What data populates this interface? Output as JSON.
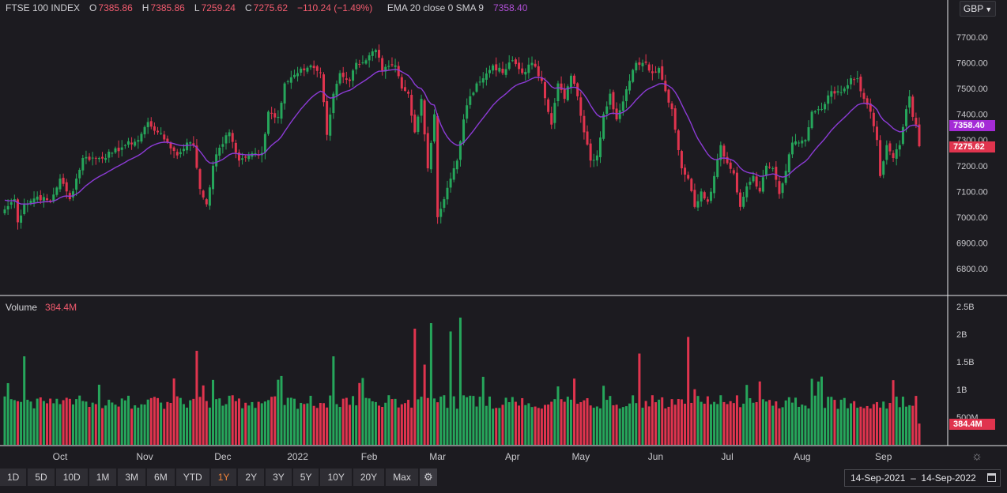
{
  "header": {
    "symbol": "FTSE 100 INDEX",
    "open_label": "O",
    "open": "7385.86",
    "high_label": "H",
    "high": "7385.86",
    "low_label": "L",
    "low": "7259.24",
    "close_label": "C",
    "close": "7275.62",
    "change": "−110.24 (−1.49%)",
    "indicator_label": "EMA 20 close 0 SMA 9",
    "indicator_value": "7358.40"
  },
  "currency": "GBP",
  "volume_label": "Volume",
  "volume_value": "384.4M",
  "price_tags": {
    "ema": "7358.40",
    "last": "7275.62",
    "volume": "384.4M"
  },
  "toolbar": {
    "ranges": [
      "1D",
      "5D",
      "10D",
      "1M",
      "3M",
      "6M",
      "YTD",
      "1Y",
      "2Y",
      "3Y",
      "5Y",
      "10Y",
      "20Y",
      "Max"
    ],
    "active_range": "1Y"
  },
  "date_range": {
    "from": "14-Sep-2021",
    "sep": "–",
    "to": "14-Sep-2022"
  },
  "colors": {
    "up": "#26a65b",
    "down": "#e0344e",
    "ema": "#8c3bd6",
    "background": "#1c1b20",
    "grid": "#2a2a30"
  },
  "icons": [
    "chevron-down-icon",
    "gear-icon",
    "calendar-icon",
    "settings-sun-icon"
  ],
  "chart_data": {
    "type": "candlestick",
    "title": "FTSE 100 INDEX",
    "price_axis": {
      "ticks": [
        "7700.00",
        "7600.00",
        "7500.00",
        "7400.00",
        "7300.00",
        "7200.00",
        "7100.00",
        "7000.00",
        "6900.00",
        "6800.00"
      ],
      "ylim": [
        6760,
        7760
      ]
    },
    "volume_axis": {
      "ticks": [
        "2.5B",
        "2B",
        "1.5B",
        "1B",
        "500M"
      ],
      "ylim": [
        0,
        2.55
      ]
    },
    "x_ticks": [
      "Oct",
      "Nov",
      "Dec",
      "2022",
      "Feb",
      "Mar",
      "Apr",
      "May",
      "Jun",
      "Jul",
      "Aug",
      "Sep"
    ],
    "x_tick_days": [
      17,
      43,
      67,
      90,
      112,
      133,
      156,
      177,
      200,
      222,
      245,
      270
    ],
    "anchors": [
      [
        0,
        7030
      ],
      [
        3,
        7070
      ],
      [
        4,
        6980
      ],
      [
        6,
        7050
      ],
      [
        10,
        7080
      ],
      [
        14,
        7060
      ],
      [
        17,
        7150
      ],
      [
        20,
        7070
      ],
      [
        24,
        7230
      ],
      [
        29,
        7230
      ],
      [
        33,
        7250
      ],
      [
        37,
        7280
      ],
      [
        41,
        7300
      ],
      [
        44,
        7370
      ],
      [
        47,
        7330
      ],
      [
        50,
        7290
      ],
      [
        53,
        7240
      ],
      [
        56,
        7290
      ],
      [
        58,
        7280
      ],
      [
        60,
        7110
      ],
      [
        62,
        7050
      ],
      [
        64,
        7200
      ],
      [
        66,
        7270
      ],
      [
        69,
        7330
      ],
      [
        72,
        7220
      ],
      [
        75,
        7240
      ],
      [
        79,
        7250
      ],
      [
        81,
        7410
      ],
      [
        84,
        7390
      ],
      [
        86,
        7520
      ],
      [
        90,
        7560
      ],
      [
        94,
        7590
      ],
      [
        97,
        7560
      ],
      [
        99,
        7320
      ],
      [
        101,
        7480
      ],
      [
        103,
        7560
      ],
      [
        106,
        7530
      ],
      [
        108,
        7600
      ],
      [
        111,
        7610
      ],
      [
        114,
        7650
      ],
      [
        116,
        7570
      ],
      [
        120,
        7590
      ],
      [
        122,
        7500
      ],
      [
        124,
        7480
      ],
      [
        126,
        7330
      ],
      [
        128,
        7460
      ],
      [
        130,
        7190
      ],
      [
        132,
        7400
      ],
      [
        133,
        7000
      ],
      [
        135,
        7070
      ],
      [
        137,
        7150
      ],
      [
        139,
        7220
      ],
      [
        141,
        7380
      ],
      [
        143,
        7470
      ],
      [
        145,
        7520
      ],
      [
        147,
        7540
      ],
      [
        150,
        7590
      ],
      [
        153,
        7560
      ],
      [
        156,
        7610
      ],
      [
        159,
        7560
      ],
      [
        162,
        7600
      ],
      [
        165,
        7530
      ],
      [
        168,
        7360
      ],
      [
        170,
        7520
      ],
      [
        172,
        7460
      ],
      [
        174,
        7550
      ],
      [
        176,
        7470
      ],
      [
        178,
        7330
      ],
      [
        180,
        7220
      ],
      [
        182,
        7240
      ],
      [
        184,
        7400
      ],
      [
        186,
        7480
      ],
      [
        188,
        7380
      ],
      [
        190,
        7450
      ],
      [
        192,
        7530
      ],
      [
        194,
        7600
      ],
      [
        197,
        7600
      ],
      [
        199,
        7560
      ],
      [
        201,
        7580
      ],
      [
        203,
        7490
      ],
      [
        205,
        7420
      ],
      [
        208,
        7190
      ],
      [
        210,
        7150
      ],
      [
        212,
        7040
      ],
      [
        214,
        7100
      ],
      [
        216,
        7060
      ],
      [
        218,
        7160
      ],
      [
        220,
        7280
      ],
      [
        222,
        7210
      ],
      [
        224,
        7170
      ],
      [
        226,
        7040
      ],
      [
        228,
        7120
      ],
      [
        230,
        7160
      ],
      [
        232,
        7100
      ],
      [
        234,
        7200
      ],
      [
        236,
        7190
      ],
      [
        238,
        7090
      ],
      [
        240,
        7180
      ],
      [
        242,
        7290
      ],
      [
        244,
        7290
      ],
      [
        246,
        7300
      ],
      [
        248,
        7410
      ],
      [
        250,
        7420
      ],
      [
        252,
        7440
      ],
      [
        254,
        7490
      ],
      [
        256,
        7490
      ],
      [
        258,
        7500
      ],
      [
        260,
        7540
      ],
      [
        262,
        7540
      ],
      [
        264,
        7460
      ],
      [
        266,
        7410
      ],
      [
        268,
        7300
      ],
      [
        269,
        7160
      ],
      [
        271,
        7280
      ],
      [
        273,
        7230
      ],
      [
        275,
        7280
      ],
      [
        277,
        7420
      ],
      [
        278,
        7470
      ],
      [
        279,
        7390
      ],
      [
        280,
        7360
      ],
      [
        281,
        7276
      ]
    ],
    "volume_scale": [
      0.65,
      0.9,
      1.3
    ],
    "spike_days": {
      "6": 1.6,
      "59": 1.7,
      "101": 1.6,
      "126": 2.1,
      "129": 1.45,
      "131": 2.2,
      "137": 2.05,
      "140": 2.3,
      "195": 1.65,
      "210": 1.95
    },
    "last_volume": 0.3844
  }
}
